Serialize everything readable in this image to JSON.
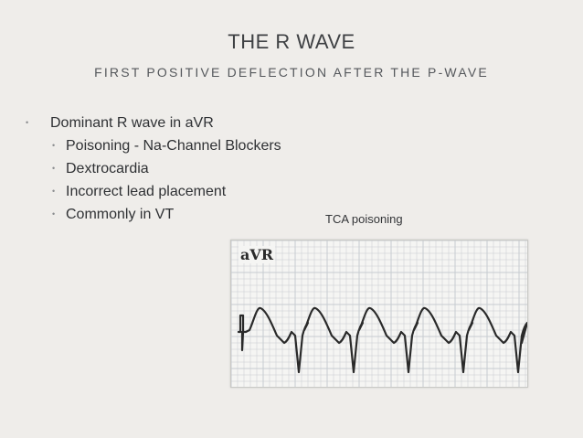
{
  "slide": {
    "title": "THE R WAVE",
    "subtitle": "FIRST POSITIVE DEFLECTION AFTER THE P-WAVE",
    "bullets": [
      {
        "text": "Dominant R wave in aVR",
        "level": 1
      },
      {
        "text": "Poisoning - Na-Channel Blockers",
        "level": 2
      },
      {
        "text": "Dextrocardia",
        "level": 2
      },
      {
        "text": "Incorrect lead placement",
        "level": 2
      },
      {
        "text": "Commonly in VT",
        "level": 2
      }
    ],
    "bullet_glyph": "•"
  },
  "figure": {
    "caption": "TCA poisoning",
    "lead_label": "aVR",
    "grid_color": "#c7cbd0",
    "trace_color": "#2a2a2a",
    "background": "#efedea"
  }
}
